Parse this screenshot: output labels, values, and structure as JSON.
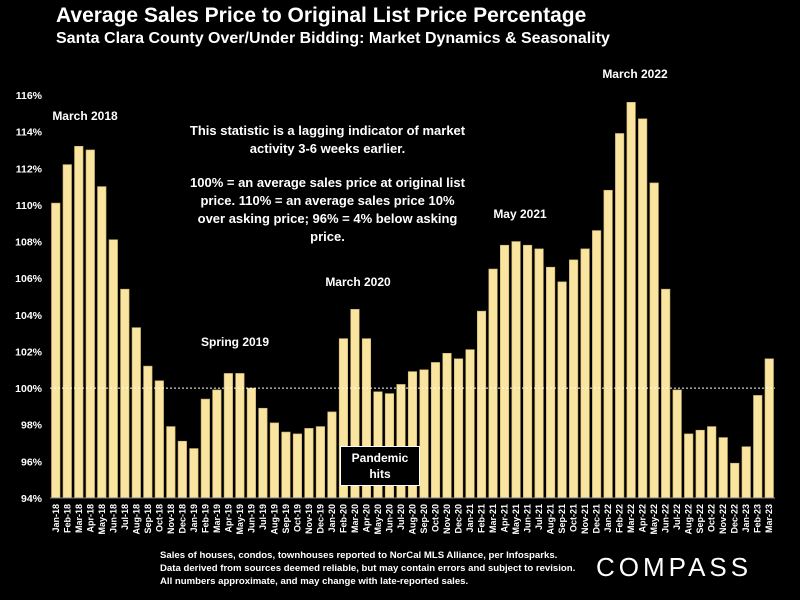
{
  "header": {
    "title": "Average Sales Price to Original List Price Percentage",
    "subtitle": "Santa Clara County Over/Under Bidding: Market Dynamics & Seasonality"
  },
  "note": {
    "line1": "This statistic is a lagging indicator of market activity 3-6 weeks earlier.",
    "line2": "100% = an average sales price at original list price. 110% = an average sales price 10% over asking price; 96% = 4% below asking price."
  },
  "annotations": {
    "march_2018": "March 2018",
    "spring_2019": "Spring 2019",
    "march_2020": "March 2020",
    "pandemic": "Pandemic hits",
    "may_2021": "May 2021",
    "march_2022": "March 2022"
  },
  "footer": "Sales of houses, condos, townhouses reported to NorCal MLS Alliance, per Infosparks. Data derived from sources deemed reliable, but may contain errors and subject to revision. All numbers approximate, and may change with late-reported sales.",
  "logo": "COMPASS",
  "colors": {
    "bar_fill": "#f9e5a0",
    "bar_stroke": "#c9b06a",
    "background": "#000000",
    "reference_line": "#ffffff"
  },
  "chart_data": {
    "type": "bar",
    "title": "Average Sales Price to Original List Price Percentage",
    "subtitle": "Santa Clara County Over/Under Bidding: Market Dynamics & Seasonality",
    "categories": [
      "Jan-18",
      "Feb-18",
      "Mar-18",
      "Apr-18",
      "May-18",
      "Jun-18",
      "Jul-18",
      "Aug-18",
      "Sep-18",
      "Oct-18",
      "Nov-18",
      "Dec-18",
      "Jan-19",
      "Feb-19",
      "Mar-19",
      "Apr-19",
      "May-19",
      "Jun-19",
      "Jul-19",
      "Aug-19",
      "Sep-19",
      "Oct-19",
      "Nov-19",
      "Dec-19",
      "Jan-20",
      "Feb-20",
      "Mar-20",
      "Apr-20",
      "May-20",
      "Jun-20",
      "Jul-20",
      "Aug-20",
      "Sep-20",
      "Oct-20",
      "Nov-20",
      "Dec-20",
      "Jan-21",
      "Feb-21",
      "Mar-21",
      "Apr-21",
      "May-21",
      "Jun-21",
      "Jul-21",
      "Aug-21",
      "Sep-21",
      "Oct-21",
      "Nov-21",
      "Dec-21",
      "Jan-22",
      "Feb-22",
      "Mar-22",
      "Apr-22",
      "May-22",
      "Jun-22",
      "Jul-22",
      "Aug-22",
      "Sep-22",
      "Oct-22",
      "Nov-22",
      "Dec-22",
      "Jan-23",
      "Feb-23",
      "Mar-23"
    ],
    "values": [
      110.1,
      112.2,
      113.2,
      113.0,
      111.0,
      108.1,
      105.4,
      103.3,
      101.2,
      100.4,
      97.9,
      97.1,
      96.7,
      99.4,
      99.9,
      100.8,
      100.8,
      100.0,
      98.9,
      98.1,
      97.6,
      97.5,
      97.8,
      97.9,
      98.7,
      102.7,
      104.3,
      102.7,
      99.8,
      99.7,
      100.2,
      100.9,
      101.0,
      101.4,
      101.9,
      101.6,
      102.1,
      104.2,
      106.5,
      107.8,
      108.0,
      107.8,
      107.6,
      106.6,
      105.8,
      107.0,
      107.6,
      108.6,
      110.8,
      113.9,
      115.6,
      114.7,
      111.2,
      105.4,
      99.9,
      97.5,
      97.7,
      97.9,
      97.3,
      95.9,
      96.8,
      99.6,
      101.6
    ],
    "y_tick_labels": [
      "94%",
      "96%",
      "98%",
      "100%",
      "102%",
      "104%",
      "106%",
      "108%",
      "110%",
      "112%",
      "114%",
      "116%"
    ],
    "ylim": [
      94,
      116
    ],
    "y_ticks": [
      94,
      96,
      98,
      100,
      102,
      104,
      106,
      108,
      110,
      112,
      114,
      116
    ],
    "reference_line": 100,
    "grid": false,
    "legend": "none"
  }
}
